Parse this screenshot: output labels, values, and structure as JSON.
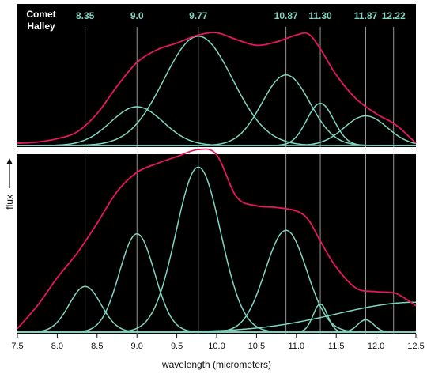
{
  "chart_data": {
    "type": "line",
    "xlabel": "wavelength (micrometers)",
    "ylabel": "flux",
    "xlim": [
      7.5,
      12.5
    ],
    "x_ticks": [
      "7.5",
      "8.0",
      "8.5",
      "9.0",
      "9.5",
      "10.0",
      "10.5",
      "11.0",
      "11.5",
      "12.0",
      "12.5"
    ],
    "colors": {
      "total": "#e8175d",
      "component": "#7fd6c2",
      "panel_bg": "#000000",
      "marker": "#bbbbbb"
    },
    "peak_markers": [
      "8.35",
      "9.0",
      "9.77",
      "10.87",
      "11.30",
      "11.87",
      "12.22"
    ],
    "panels": [
      {
        "title": [
          "Comet",
          "Halley"
        ],
        "total": [
          [
            7.5,
            0.02
          ],
          [
            7.75,
            0.03
          ],
          [
            8.0,
            0.06
          ],
          [
            8.25,
            0.12
          ],
          [
            8.5,
            0.28
          ],
          [
            8.75,
            0.52
          ],
          [
            9.0,
            0.73
          ],
          [
            9.25,
            0.84
          ],
          [
            9.5,
            0.9
          ],
          [
            9.77,
            0.97
          ],
          [
            10.0,
            0.99
          ],
          [
            10.25,
            0.93
          ],
          [
            10.5,
            0.88
          ],
          [
            10.75,
            0.91
          ],
          [
            11.0,
            0.97
          ],
          [
            11.15,
            0.98
          ],
          [
            11.3,
            0.85
          ],
          [
            11.5,
            0.62
          ],
          [
            11.75,
            0.41
          ],
          [
            12.0,
            0.28
          ],
          [
            12.25,
            0.18
          ],
          [
            12.5,
            0.02
          ]
        ],
        "components": [
          {
            "center": 9.0,
            "height": 0.34,
            "width": 0.33
          },
          {
            "center": 9.77,
            "height": 0.96,
            "width": 0.43
          },
          {
            "center": 10.87,
            "height": 0.62,
            "width": 0.3
          },
          {
            "center": 11.3,
            "height": 0.37,
            "width": 0.17
          },
          {
            "center": 11.87,
            "height": 0.26,
            "width": 0.27
          }
        ]
      },
      {
        "title": [],
        "total": [
          [
            7.5,
            0.02
          ],
          [
            7.75,
            0.15
          ],
          [
            8.0,
            0.31
          ],
          [
            8.25,
            0.45
          ],
          [
            8.5,
            0.62
          ],
          [
            8.75,
            0.8
          ],
          [
            9.0,
            0.91
          ],
          [
            9.25,
            0.96
          ],
          [
            9.5,
            1.0
          ],
          [
            9.77,
            1.04
          ],
          [
            10.0,
            1.01
          ],
          [
            10.25,
            0.77
          ],
          [
            10.5,
            0.72
          ],
          [
            10.75,
            0.71
          ],
          [
            11.0,
            0.69
          ],
          [
            11.15,
            0.64
          ],
          [
            11.3,
            0.52
          ],
          [
            11.5,
            0.37
          ],
          [
            11.75,
            0.25
          ],
          [
            12.0,
            0.23
          ],
          [
            12.25,
            0.22
          ],
          [
            12.5,
            0.15
          ]
        ],
        "components": [
          {
            "center": 8.35,
            "height": 0.26,
            "width": 0.2
          },
          {
            "center": 9.0,
            "height": 0.56,
            "width": 0.22
          },
          {
            "center": 9.77,
            "height": 0.94,
            "width": 0.28
          },
          {
            "center": 10.87,
            "height": 0.58,
            "width": 0.26
          },
          {
            "center": 11.3,
            "height": 0.16,
            "width": 0.09
          },
          {
            "center": 11.87,
            "height": 0.07,
            "width": 0.1
          },
          {
            "center": 12.5,
            "height": 0.17,
            "width": 1.0
          }
        ]
      }
    ]
  }
}
